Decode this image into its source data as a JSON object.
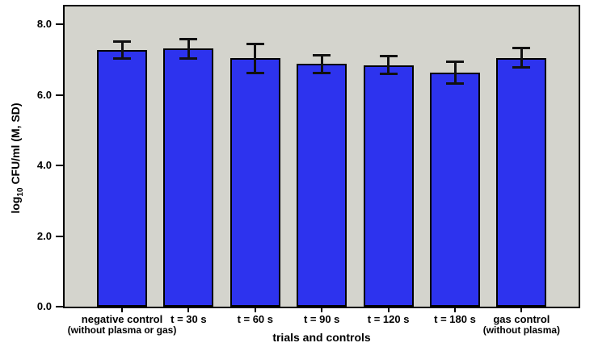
{
  "chart_data": {
    "type": "bar",
    "title": "",
    "xlabel": "trials and controls",
    "ylabel": {
      "prefix": "log",
      "subscript": "10",
      "rest": " CFU/ml (M, SD)"
    },
    "categories": [
      {
        "label": "negative control",
        "sublabel": "(without plasma or gas)"
      },
      {
        "label": "t = 30 s",
        "sublabel": ""
      },
      {
        "label": "t = 60 s",
        "sublabel": ""
      },
      {
        "label": "t = 90 s",
        "sublabel": ""
      },
      {
        "label": "t = 120 s",
        "sublabel": ""
      },
      {
        "label": "t = 180 s",
        "sublabel": ""
      },
      {
        "label": "gas control",
        "sublabel": "(without plasma)"
      }
    ],
    "series": [
      {
        "name": "log10 CFU/ml (M)",
        "values": [
          7.27,
          7.31,
          7.03,
          6.87,
          6.84,
          6.64,
          7.05
        ],
        "sd": [
          0.25,
          0.29,
          0.42,
          0.27,
          0.26,
          0.32,
          0.28
        ]
      }
    ],
    "error_bars": true,
    "y_ticks": [
      "0.0",
      "2.0",
      "4.0",
      "6.0",
      "8.0"
    ],
    "ylim": [
      0,
      8.55
    ],
    "grid": false,
    "legend": "none",
    "colors": {
      "bar_fill": "#2d33ee",
      "bar_border": "#000000",
      "error_bar": "#111111",
      "plot_background": "#d4d4cd",
      "axis": "#000000",
      "text": "#000000"
    }
  }
}
